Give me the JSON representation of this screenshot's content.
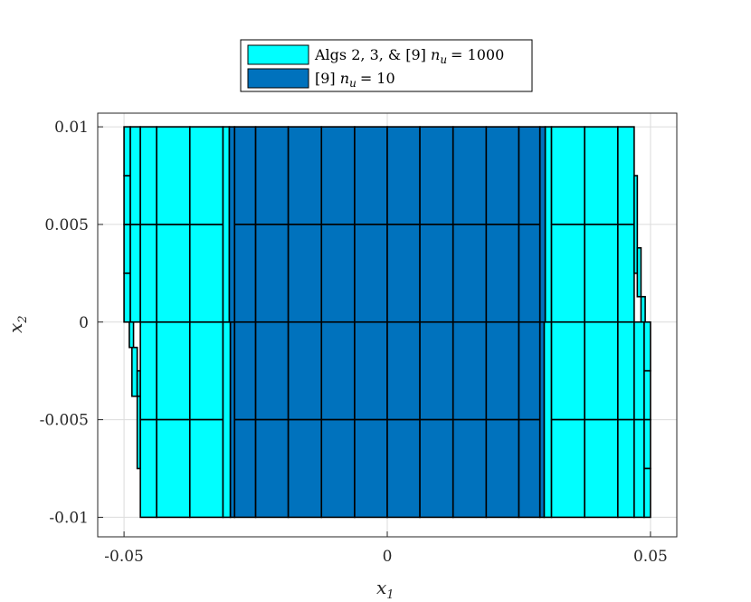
{
  "colors": {
    "cyan": "#00FFFF",
    "blue": "#0072BD",
    "edge": "#000000",
    "grid": "#dcdcdc"
  },
  "chart_data": {
    "type": "box-partition",
    "xlim": [
      -0.055,
      0.055
    ],
    "ylim": [
      -0.011,
      0.0107
    ],
    "grid": true,
    "legend_placement": "top-center, outside plot",
    "xlabel": {
      "base": "x",
      "sub": "1"
    },
    "ylabel": {
      "base": "x",
      "sub": "2"
    },
    "xticks": [
      -0.05,
      0,
      0.05
    ],
    "xtick_labels": [
      "-0.05",
      "0",
      "0.05"
    ],
    "yticks": [
      -0.01,
      -0.005,
      0,
      0.005,
      0.01
    ],
    "ytick_labels": [
      "-0.01",
      "-0.005",
      "0",
      "0.005",
      "0.01"
    ],
    "legend": [
      {
        "label": "Algs 2, 3, & [9]",
        "mathvar": "n",
        "mathsub": "u",
        "eq": "= 1000",
        "color": "#00FFFF"
      },
      {
        "label": "[9]",
        "mathvar": "n",
        "mathsub": "u",
        "eq": "= 10",
        "color": "#0072BD"
      }
    ],
    "series": [
      {
        "name": "Algs 2, 3, & [9] n_u = 1000",
        "color": "#00FFFF",
        "boxes": [
          [
            -0.05,
            -0.0488,
            0.0025,
            0.005
          ],
          [
            -0.05,
            -0.0488,
            0.005,
            0.0075
          ],
          [
            -0.05,
            -0.0488,
            0.0075,
            0.01
          ],
          [
            -0.05,
            -0.0488,
            0.0,
            0.0025
          ],
          [
            -0.0488,
            -0.0469,
            0.0,
            0.005
          ],
          [
            -0.0488,
            -0.0469,
            0.005,
            0.01
          ],
          [
            -0.049,
            -0.0482,
            -0.0013,
            0.0
          ],
          [
            -0.0485,
            -0.0475,
            -0.0038,
            -0.0013
          ],
          [
            -0.0475,
            -0.0469,
            -0.0038,
            -0.0025
          ],
          [
            -0.0475,
            -0.0469,
            -0.0075,
            -0.0038
          ],
          [
            -0.0469,
            -0.0438,
            -0.005,
            0.0
          ],
          [
            -0.0469,
            -0.0438,
            0.0,
            0.005
          ],
          [
            -0.0469,
            -0.0438,
            0.005,
            0.01
          ],
          [
            -0.0469,
            -0.0438,
            -0.01,
            -0.005
          ],
          [
            -0.0438,
            -0.0375,
            -0.005,
            0.0
          ],
          [
            -0.0438,
            -0.0375,
            0.0,
            0.005
          ],
          [
            -0.0438,
            -0.0375,
            0.005,
            0.01
          ],
          [
            -0.0438,
            -0.0375,
            -0.01,
            -0.005
          ],
          [
            -0.0375,
            -0.0312,
            -0.005,
            0.0
          ],
          [
            -0.0375,
            -0.0312,
            0.0,
            0.005
          ],
          [
            -0.0375,
            -0.0312,
            0.005,
            0.01
          ],
          [
            -0.0375,
            -0.0312,
            -0.01,
            -0.005
          ],
          [
            -0.0312,
            -0.0298,
            -0.01,
            0.0
          ],
          [
            -0.0312,
            -0.03,
            0.0,
            0.01
          ],
          [
            0.03,
            0.0312,
            0.0,
            0.01
          ],
          [
            0.0298,
            0.0312,
            -0.01,
            0.0
          ],
          [
            0.0312,
            0.0375,
            0.005,
            0.01
          ],
          [
            0.0312,
            0.0375,
            0.0,
            0.005
          ],
          [
            0.0312,
            0.0375,
            -0.005,
            0.0
          ],
          [
            0.0312,
            0.0375,
            -0.01,
            -0.005
          ],
          [
            0.0375,
            0.0438,
            0.005,
            0.01
          ],
          [
            0.0375,
            0.0438,
            0.0,
            0.005
          ],
          [
            0.0375,
            0.0438,
            -0.005,
            0.0
          ],
          [
            0.0375,
            0.0438,
            -0.01,
            -0.005
          ],
          [
            0.0438,
            0.0469,
            0.005,
            0.01
          ],
          [
            0.0438,
            0.0469,
            0.0,
            0.005
          ],
          [
            0.0438,
            0.0469,
            -0.005,
            0.0
          ],
          [
            0.0438,
            0.0469,
            -0.01,
            -0.005
          ],
          [
            0.0469,
            0.0475,
            0.0025,
            0.0075
          ],
          [
            0.0475,
            0.0482,
            0.0013,
            0.0038
          ],
          [
            0.0482,
            0.049,
            0.0,
            0.0013
          ],
          [
            0.0469,
            0.0488,
            -0.005,
            0.0
          ],
          [
            0.0469,
            0.0488,
            -0.01,
            -0.005
          ],
          [
            0.0488,
            0.05,
            -0.0025,
            0.0
          ],
          [
            0.0488,
            0.05,
            -0.005,
            -0.0025
          ],
          [
            0.0488,
            0.05,
            -0.0075,
            -0.005
          ],
          [
            0.0488,
            0.05,
            -0.01,
            -0.0075
          ]
        ]
      },
      {
        "name": "[9] n_u = 10",
        "color": "#0072BD",
        "boxes": [
          [
            -0.0298,
            -0.029,
            -0.01,
            0.0
          ],
          [
            -0.03,
            -0.029,
            0.0,
            0.01
          ],
          [
            -0.029,
            -0.025,
            0.005,
            0.01
          ],
          [
            -0.029,
            -0.025,
            0.0,
            0.005
          ],
          [
            -0.029,
            -0.025,
            -0.005,
            0.0
          ],
          [
            -0.029,
            -0.025,
            -0.01,
            -0.005
          ],
          [
            -0.025,
            -0.0188,
            0.005,
            0.01
          ],
          [
            -0.025,
            -0.0188,
            0.0,
            0.005
          ],
          [
            -0.025,
            -0.0188,
            -0.005,
            0.0
          ],
          [
            -0.025,
            -0.0188,
            -0.01,
            -0.005
          ],
          [
            -0.0188,
            -0.0125,
            0.005,
            0.01
          ],
          [
            -0.0188,
            -0.0125,
            0.0,
            0.005
          ],
          [
            -0.0188,
            -0.0125,
            -0.005,
            0.0
          ],
          [
            -0.0188,
            -0.0125,
            -0.01,
            -0.005
          ],
          [
            -0.0125,
            -0.0062,
            0.005,
            0.01
          ],
          [
            -0.0125,
            -0.0062,
            0.0,
            0.005
          ],
          [
            -0.0125,
            -0.0062,
            -0.005,
            0.0
          ],
          [
            -0.0125,
            -0.0062,
            -0.01,
            -0.005
          ],
          [
            -0.0062,
            0.0,
            0.005,
            0.01
          ],
          [
            -0.0062,
            0.0,
            0.0,
            0.005
          ],
          [
            -0.0062,
            0.0,
            -0.005,
            0.0
          ],
          [
            -0.0062,
            0.0,
            -0.01,
            -0.005
          ],
          [
            0.0,
            0.0062,
            0.005,
            0.01
          ],
          [
            0.0,
            0.0062,
            0.0,
            0.005
          ],
          [
            0.0,
            0.0062,
            -0.005,
            0.0
          ],
          [
            0.0,
            0.0062,
            -0.01,
            -0.005
          ],
          [
            0.0062,
            0.0125,
            0.005,
            0.01
          ],
          [
            0.0062,
            0.0125,
            0.0,
            0.005
          ],
          [
            0.0062,
            0.0125,
            -0.005,
            0.0
          ],
          [
            0.0062,
            0.0125,
            -0.01,
            -0.005
          ],
          [
            0.0125,
            0.0188,
            0.005,
            0.01
          ],
          [
            0.0125,
            0.0188,
            0.0,
            0.005
          ],
          [
            0.0125,
            0.0188,
            -0.005,
            0.0
          ],
          [
            0.0125,
            0.0188,
            -0.01,
            -0.005
          ],
          [
            0.0188,
            0.025,
            0.005,
            0.01
          ],
          [
            0.0188,
            0.025,
            0.0,
            0.005
          ],
          [
            0.0188,
            0.025,
            -0.005,
            0.0
          ],
          [
            0.0188,
            0.025,
            -0.01,
            -0.005
          ],
          [
            0.025,
            0.029,
            0.005,
            0.01
          ],
          [
            0.025,
            0.029,
            0.0,
            0.005
          ],
          [
            0.025,
            0.029,
            -0.005,
            0.0
          ],
          [
            0.025,
            0.029,
            -0.01,
            -0.005
          ],
          [
            0.029,
            0.03,
            0.0,
            0.01
          ],
          [
            0.029,
            0.0298,
            -0.01,
            0.0
          ]
        ]
      }
    ]
  }
}
